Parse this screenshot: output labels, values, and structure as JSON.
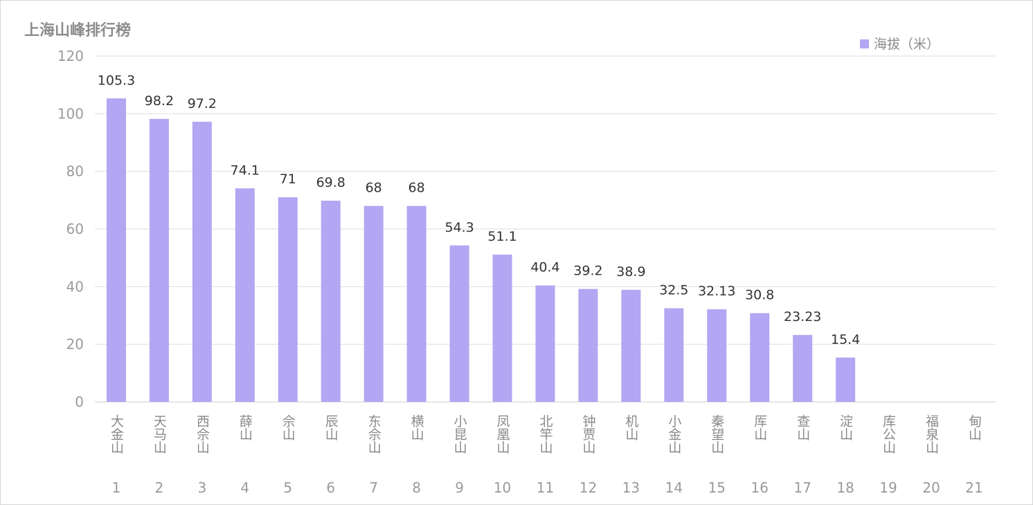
{
  "chart_data": {
    "type": "bar",
    "title": "上海山峰排行榜",
    "categories": [
      "大金山",
      "天马山",
      "西佘山",
      "薛山",
      "佘山",
      "辰山",
      "东佘山",
      "横山",
      "小昆山",
      "凤凰山",
      "北竿山",
      "钟贾山",
      "机山",
      "小金山",
      "秦望山",
      "厍山",
      "查山",
      "淀山",
      "库公山",
      "福泉山",
      "甸山"
    ],
    "index_labels": [
      "1",
      "2",
      "3",
      "4",
      "5",
      "6",
      "7",
      "8",
      "9",
      "10",
      "11",
      "12",
      "13",
      "14",
      "15",
      "16",
      "17",
      "18",
      "19",
      "20",
      "21"
    ],
    "series": [
      {
        "name": "海拔（米）",
        "values": [
          105.3,
          98.2,
          97.2,
          74.1,
          71,
          69.8,
          68,
          68,
          54.3,
          51.1,
          40.4,
          39.2,
          38.9,
          32.5,
          32.13,
          30.8,
          23.23,
          15.4,
          null,
          null,
          null
        ],
        "labels": [
          "105.3",
          "98.2",
          "97.2",
          "74.1",
          "71",
          "69.8",
          "68",
          "68",
          "54.3",
          "51.1",
          "40.4",
          "39.2",
          "38.9",
          "32.5",
          "32.13",
          "30.8",
          "23.23",
          "15.4",
          "",
          "",
          ""
        ],
        "color": "#b3a6f2"
      }
    ],
    "ylim": [
      0,
      120
    ],
    "yticks": [
      "0",
      "20",
      "40",
      "60",
      "80",
      "100",
      "120"
    ],
    "xlabel": "",
    "ylabel": "",
    "grid": true,
    "legend_position": "top-right"
  }
}
